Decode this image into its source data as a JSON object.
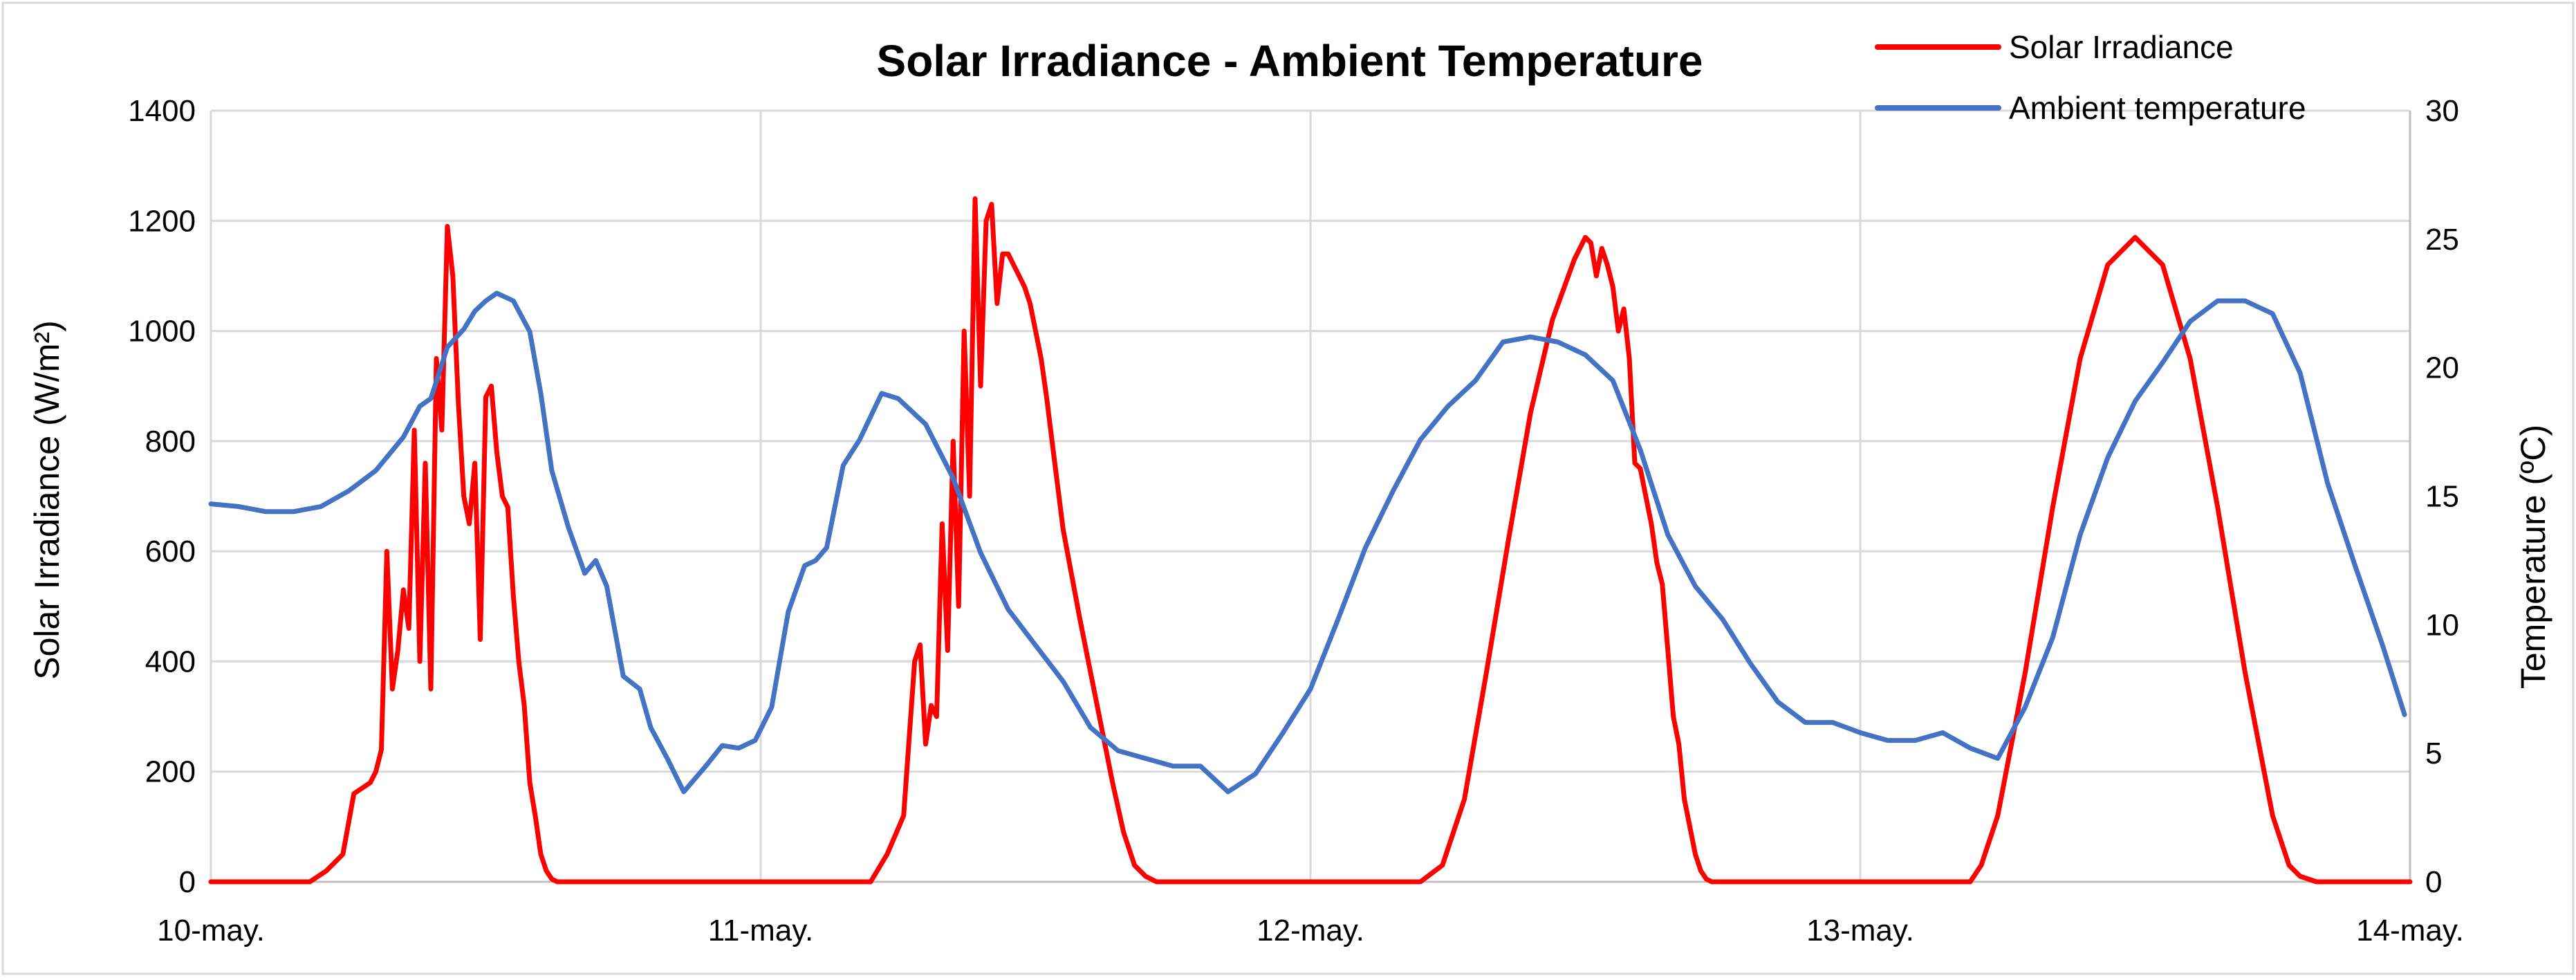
{
  "chart_data": {
    "type": "line",
    "title": "Solar Irradiance - Ambient Temperature",
    "xlabel": "",
    "ylabel": "Solar Irradiance (W/m²)",
    "y2label": "Temperature (ºC)",
    "ylim": [
      0,
      1400
    ],
    "y2lim": [
      0,
      30
    ],
    "yticks": [
      0,
      200,
      400,
      600,
      800,
      1000,
      1200,
      1400
    ],
    "y2ticks": [
      0,
      5,
      10,
      15,
      20,
      25,
      30
    ],
    "xlim": [
      0,
      4
    ],
    "xticks": [
      0,
      1,
      2,
      3,
      4
    ],
    "xtick_labels": [
      "10-may.",
      "11-may.",
      "12-may.",
      "13-may.",
      "14-may."
    ],
    "grid": true,
    "legend_position": "top-right",
    "series": [
      {
        "name": "Solar Irradiance",
        "axis": "left",
        "color": "#ff0000",
        "x": [
          0,
          0.18,
          0.21,
          0.24,
          0.26,
          0.29,
          0.3,
          0.31,
          0.32,
          0.33,
          0.34,
          0.35,
          0.36,
          0.37,
          0.38,
          0.39,
          0.4,
          0.41,
          0.42,
          0.43,
          0.44,
          0.45,
          0.46,
          0.47,
          0.48,
          0.49,
          0.5,
          0.51,
          0.52,
          0.53,
          0.54,
          0.55,
          0.56,
          0.57,
          0.58,
          0.59,
          0.6,
          0.61,
          0.62,
          0.63,
          0.64,
          0.65,
          0.66,
          0.68,
          0.7,
          0.72,
          0.74,
          0.76,
          0.78,
          0.8,
          0.84,
          1.0,
          1.2,
          1.23,
          1.26,
          1.28,
          1.29,
          1.3,
          1.31,
          1.32,
          1.33,
          1.34,
          1.35,
          1.36,
          1.37,
          1.38,
          1.39,
          1.4,
          1.41,
          1.42,
          1.43,
          1.44,
          1.45,
          1.46,
          1.47,
          1.48,
          1.49,
          1.5,
          1.51,
          1.52,
          1.53,
          1.54,
          1.55,
          1.58,
          1.6,
          1.62,
          1.64,
          1.66,
          1.68,
          1.7,
          1.72,
          1.74,
          1.76,
          1.78,
          1.8,
          1.85,
          2.0,
          2.2,
          2.24,
          2.28,
          2.32,
          2.36,
          2.4,
          2.44,
          2.48,
          2.5,
          2.51,
          2.52,
          2.53,
          2.54,
          2.55,
          2.56,
          2.57,
          2.58,
          2.59,
          2.6,
          2.61,
          2.62,
          2.63,
          2.64,
          2.65,
          2.66,
          2.67,
          2.68,
          2.69,
          2.7,
          2.71,
          2.72,
          2.73,
          2.74,
          2.75,
          2.76,
          2.78,
          2.8,
          2.83,
          3.0,
          3.2,
          3.22,
          3.25,
          3.3,
          3.35,
          3.4,
          3.45,
          3.5,
          3.55,
          3.6,
          3.65,
          3.7,
          3.75,
          3.78,
          3.8,
          3.83,
          4.0
        ],
        "values": [
          0,
          0,
          20,
          50,
          160,
          180,
          200,
          240,
          600,
          350,
          420,
          530,
          460,
          820,
          400,
          760,
          350,
          950,
          820,
          1190,
          1100,
          870,
          700,
          650,
          760,
          440,
          880,
          900,
          780,
          700,
          680,
          520,
          400,
          320,
          180,
          120,
          50,
          20,
          5,
          0,
          0,
          0,
          0,
          0,
          0,
          0,
          0,
          0,
          0,
          0,
          0,
          0,
          0,
          50,
          120,
          400,
          430,
          250,
          320,
          300,
          650,
          420,
          800,
          500,
          1000,
          700,
          1240,
          900,
          1200,
          1230,
          1050,
          1140,
          1140,
          1120,
          1100,
          1080,
          1050,
          1000,
          950,
          880,
          800,
          720,
          640,
          480,
          380,
          280,
          180,
          90,
          30,
          10,
          0,
          0,
          0,
          0,
          0,
          0,
          0,
          0,
          30,
          150,
          380,
          620,
          850,
          1020,
          1130,
          1170,
          1160,
          1100,
          1150,
          1120,
          1080,
          1000,
          1040,
          950,
          760,
          750,
          700,
          650,
          580,
          540,
          420,
          300,
          250,
          150,
          100,
          50,
          20,
          5,
          0,
          0,
          0,
          0,
          0,
          0,
          0,
          0,
          0,
          30,
          120,
          380,
          680,
          950,
          1120,
          1170,
          1120,
          950,
          680,
          380,
          120,
          30,
          10,
          0,
          0
        ]
      },
      {
        "name": "Ambient temperature",
        "axis": "right",
        "color": "#4472c4",
        "x": [
          0,
          0.05,
          0.1,
          0.15,
          0.2,
          0.25,
          0.3,
          0.35,
          0.38,
          0.4,
          0.43,
          0.46,
          0.48,
          0.5,
          0.52,
          0.55,
          0.58,
          0.6,
          0.62,
          0.65,
          0.68,
          0.7,
          0.72,
          0.75,
          0.78,
          0.8,
          0.83,
          0.86,
          0.9,
          0.93,
          0.96,
          0.99,
          1.02,
          1.05,
          1.08,
          1.1,
          1.12,
          1.15,
          1.18,
          1.2,
          1.22,
          1.25,
          1.3,
          1.35,
          1.4,
          1.45,
          1.5,
          1.55,
          1.6,
          1.65,
          1.7,
          1.75,
          1.8,
          1.85,
          1.9,
          1.95,
          2.0,
          2.05,
          2.1,
          2.15,
          2.2,
          2.25,
          2.3,
          2.35,
          2.4,
          2.45,
          2.5,
          2.55,
          2.6,
          2.65,
          2.7,
          2.75,
          2.8,
          2.85,
          2.9,
          2.95,
          3.0,
          3.05,
          3.1,
          3.15,
          3.2,
          3.25,
          3.3,
          3.35,
          3.4,
          3.45,
          3.5,
          3.55,
          3.6,
          3.65,
          3.7,
          3.75,
          3.8,
          3.85,
          3.9,
          3.95,
          3.99
        ],
        "values": [
          14.7,
          14.6,
          14.4,
          14.4,
          14.6,
          15.2,
          16.0,
          17.3,
          18.5,
          18.8,
          20.8,
          21.5,
          22.2,
          22.6,
          22.9,
          22.6,
          21.4,
          19.0,
          16.0,
          13.8,
          12.0,
          12.5,
          11.5,
          8.0,
          7.5,
          6.0,
          4.8,
          3.5,
          4.5,
          5.3,
          5.2,
          5.5,
          6.8,
          10.5,
          12.3,
          12.5,
          13.0,
          16.2,
          17.2,
          18.1,
          19.0,
          18.8,
          17.8,
          15.7,
          12.8,
          10.6,
          9.2,
          7.8,
          6.0,
          5.1,
          4.8,
          4.5,
          4.5,
          3.5,
          4.2,
          5.8,
          7.5,
          10.2,
          13.0,
          15.2,
          17.2,
          18.5,
          19.5,
          21.0,
          21.2,
          21.0,
          20.5,
          19.5,
          16.8,
          13.5,
          11.5,
          10.2,
          8.5,
          7.0,
          6.2,
          6.2,
          5.8,
          5.5,
          5.5,
          5.8,
          5.2,
          4.8,
          6.8,
          9.5,
          13.5,
          16.5,
          18.7,
          20.2,
          21.8,
          22.6,
          22.6,
          22.1,
          19.8,
          15.5,
          12.3,
          9.2,
          6.5
        ]
      }
    ]
  }
}
